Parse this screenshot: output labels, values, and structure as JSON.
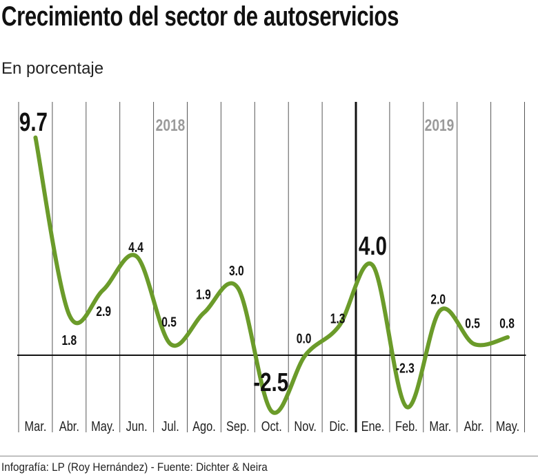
{
  "title": "Crecimiento del sector de autoservicios",
  "subtitle": "En porcentaje",
  "footer": "Infografía: LP (Roy Hernández) - Fuente: Dichter & Neira",
  "chart_data": {
    "type": "line",
    "title": "Crecimiento del sector de autoservicios",
    "subtitle": "En porcentaje",
    "categories": [
      "Mar.",
      "Abr.",
      "May.",
      "Jun.",
      "Jul.",
      "Ago.",
      "Sep.",
      "Oct.",
      "Nov.",
      "Dic.",
      "Ene.",
      "Feb.",
      "Mar.",
      "Abr.",
      "May."
    ],
    "years": [
      {
        "label": "2018",
        "start_index": 0
      },
      {
        "label": "2019",
        "start_index": 10
      }
    ],
    "values": [
      9.7,
      1.8,
      2.9,
      4.4,
      0.5,
      1.9,
      3.0,
      -2.5,
      0.0,
      1.3,
      4.0,
      -2.3,
      2.0,
      0.5,
      0.8
    ],
    "value_labels": [
      "9.7",
      "1.8",
      "2.9",
      "4.4",
      "0.5",
      "1.9",
      "3.0",
      "-2.5",
      "0.0",
      "1.3",
      "4.0",
      "-2.3",
      "2.0",
      "0.5",
      "0.8"
    ],
    "emphasized_labels": [
      0,
      7,
      10
    ],
    "ylim": [
      -3.1,
      10.5
    ],
    "grid": "vertical",
    "line_color": "#6b9b2a",
    "year_label_color": "#9a9a9a"
  }
}
